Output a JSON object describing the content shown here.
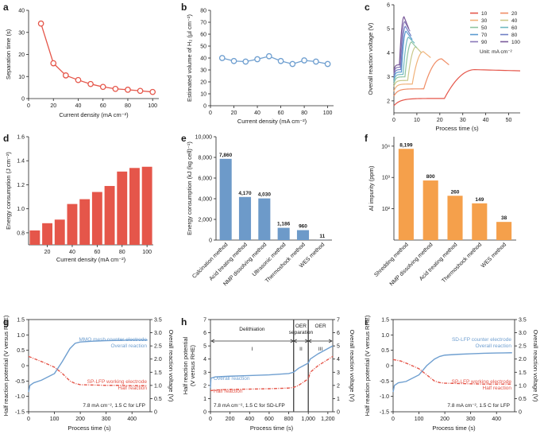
{
  "colors": {
    "red": "#e5564a",
    "blue": "#6f9fd0",
    "bar_red": "#e5564a",
    "bar_blue": "#6d9ac9",
    "bar_orange": "#f5a04b",
    "gray_line": "#4d4d4d"
  },
  "chart_data": [
    {
      "id": "a",
      "panel_label": "a",
      "type": "line",
      "x": [
        10,
        20,
        30,
        40,
        50,
        60,
        70,
        80,
        90,
        100
      ],
      "values": [
        34,
        16,
        10.5,
        8.4,
        6.6,
        5.3,
        4.4,
        4.0,
        3.5,
        3.0
      ],
      "xlabel": "Current density (mA cm⁻²)",
      "ylabel": "Separation time (s)",
      "xlim": [
        0,
        105
      ],
      "ylim": [
        0,
        40
      ],
      "xticks": [
        0,
        20,
        40,
        60,
        80,
        100
      ],
      "yticks": [
        0,
        10,
        20,
        30,
        40
      ]
    },
    {
      "id": "b",
      "panel_label": "b",
      "type": "line",
      "x": [
        10,
        20,
        30,
        40,
        50,
        60,
        70,
        80,
        90,
        100
      ],
      "values": [
        40,
        37.5,
        37,
        39,
        41.5,
        37.5,
        35,
        38,
        37,
        35
      ],
      "xlabel": "Current density (mA cm⁻²)",
      "ylabel": "Estimated volume of H₂ (µl cm⁻²)",
      "xlim": [
        0,
        105
      ],
      "ylim": [
        0,
        80
      ],
      "xticks": [
        0,
        20,
        40,
        60,
        80,
        100
      ],
      "yticks": [
        0,
        10,
        20,
        30,
        40,
        50,
        60,
        70,
        80
      ]
    },
    {
      "id": "c",
      "panel_label": "c",
      "type": "line",
      "xlabel": "Process time (s)",
      "ylabel": "Overall reaction voltage (V)",
      "xlim": [
        0,
        55
      ],
      "ylim": [
        1.5,
        6
      ],
      "xticks": [
        0,
        10,
        20,
        30,
        40,
        50
      ],
      "yticks": [
        2,
        3,
        4,
        5,
        6
      ],
      "legend_note": "Unit: mA cm⁻²",
      "series": [
        {
          "name": "10",
          "color": "#e5564a",
          "start": 1.8,
          "plateau": 2.1,
          "t_end": 22,
          "peak": 3.3,
          "end": 3.25,
          "t_stop": 55
        },
        {
          "name": "20",
          "color": "#f08c64",
          "start": 2.2,
          "plateau": 2.5,
          "t_end": 13,
          "peak": 3.75,
          "end": 3.5,
          "t_stop": 24
        },
        {
          "name": "30",
          "color": "#f1b27a",
          "start": 2.4,
          "plateau": 2.7,
          "t_end": 8,
          "peak": 4.05,
          "end": 3.8,
          "t_stop": 16
        },
        {
          "name": "40",
          "color": "#c9c98a",
          "start": 2.6,
          "plateau": 2.85,
          "t_end": 6,
          "peak": 4.25,
          "end": 4.0,
          "t_stop": 12
        },
        {
          "name": "50",
          "color": "#8fc4a0",
          "start": 2.7,
          "plateau": 3.0,
          "t_end": 4.8,
          "peak": 4.45,
          "end": 4.2,
          "t_stop": 10
        },
        {
          "name": "60",
          "color": "#6fb8c0",
          "start": 2.8,
          "plateau": 3.1,
          "t_end": 4,
          "peak": 4.65,
          "end": 4.4,
          "t_stop": 9
        },
        {
          "name": "70",
          "color": "#5b9bd0",
          "start": 2.9,
          "plateau": 3.2,
          "t_end": 3.3,
          "peak": 4.9,
          "end": 4.55,
          "t_stop": 8
        },
        {
          "name": "80",
          "color": "#6f7fc4",
          "start": 3.0,
          "plateau": 3.3,
          "t_end": 3,
          "peak": 5.1,
          "end": 4.7,
          "t_stop": 7.5
        },
        {
          "name": "90",
          "color": "#8878b8",
          "start": 3.1,
          "plateau": 3.4,
          "t_end": 2.7,
          "peak": 5.3,
          "end": 4.9,
          "t_stop": 7
        },
        {
          "name": "100",
          "color": "#7a5a9a",
          "start": 3.2,
          "plateau": 3.5,
          "t_end": 2.4,
          "peak": 5.5,
          "end": 5.0,
          "t_stop": 6.5
        }
      ]
    },
    {
      "id": "d",
      "panel_label": "d",
      "type": "bar",
      "x": [
        10,
        20,
        30,
        40,
        50,
        60,
        70,
        80,
        90,
        100
      ],
      "values": [
        0.82,
        0.88,
        0.91,
        1.04,
        1.08,
        1.14,
        1.19,
        1.31,
        1.34,
        1.35
      ],
      "xlabel": "Current density (mA cm⁻²)",
      "ylabel": "Energy consumption (J cm⁻²)",
      "xlim": [
        5,
        105
      ],
      "ylim": [
        0.7,
        1.6
      ],
      "xticks": [
        20,
        40,
        60,
        80,
        100
      ],
      "yticks": [
        0.8,
        1.0,
        1.2,
        1.4,
        1.6
      ]
    },
    {
      "id": "e",
      "panel_label": "e",
      "type": "bar",
      "categories": [
        "Calcination method",
        "Acid treating method",
        "NMP dissolving method",
        "Ultrasonic method",
        "Thermoshock method",
        "WES method"
      ],
      "values": [
        7860,
        4170,
        4030,
        1186,
        960,
        11
      ],
      "labels": [
        "7,860",
        "4,170",
        "4,030",
        "1,186",
        "960",
        "11"
      ],
      "ylabel": "Energy consumption (kJ (kg cell)⁻¹)",
      "ylim": [
        0,
        10000
      ],
      "yticks": [
        0,
        2000,
        4000,
        6000,
        8000,
        10000
      ],
      "ytick_labels": [
        "0",
        "2,000",
        "4,000",
        "6,000",
        "8,000",
        "10,000"
      ]
    },
    {
      "id": "f",
      "panel_label": "f",
      "type": "bar",
      "categories": [
        "Shredding method",
        "NMP dissolving method",
        "Acid treating method",
        "Thermoshock method",
        "WES method"
      ],
      "values": [
        8199,
        800,
        260,
        149,
        38
      ],
      "labels": [
        "8,199",
        "800",
        "260",
        "149",
        "38"
      ],
      "ylabel": "Al impurity (ppm)",
      "yscale": "log",
      "ylim": [
        10,
        20000
      ],
      "yticks": [
        100,
        1000,
        10000
      ],
      "ytick_labels": [
        "10²",
        "10³",
        "10⁴"
      ]
    },
    {
      "id": "g",
      "panel_label": "g",
      "type": "line",
      "xlabel": "Process time (s)",
      "ylabel": "Half reaction potential (V versus RHE)",
      "y2label": "Overall reaction voltage (V)",
      "xlim": [
        0,
        470
      ],
      "ylim": [
        -1.5,
        1.5
      ],
      "y2lim": [
        0,
        3.5
      ],
      "xticks": [
        0,
        100,
        200,
        300,
        400
      ],
      "yticks": [
        -1.5,
        -1.0,
        -0.5,
        0,
        0.5,
        1.0,
        1.5
      ],
      "ytick_labels": [
        "-1.5",
        "-1.0",
        "-0.5",
        "0",
        "0.5",
        "1.0",
        "1.5"
      ],
      "y2ticks": [
        0,
        0.5,
        1.0,
        1.5,
        2.0,
        2.5,
        3.0,
        3.5
      ],
      "y2tick_labels": [
        "0",
        "0.5",
        "1.0",
        "1.5",
        "2.0",
        "2.5",
        "3.0",
        "3.5"
      ],
      "series": [
        {
          "name": "Overall reaction",
          "axis": "y2",
          "color": "#6f9fd0",
          "x": [
            0,
            5,
            20,
            50,
            100,
            130,
            160,
            180,
            200,
            250,
            300,
            350,
            400,
            460
          ],
          "y": [
            0.75,
            1.0,
            1.1,
            1.2,
            1.45,
            1.9,
            2.4,
            2.6,
            2.65,
            2.68,
            2.7,
            2.71,
            2.72,
            2.72
          ]
        },
        {
          "name": "Half reaction",
          "axis": "y",
          "color": "#e5564a",
          "x": [
            0,
            30,
            60,
            100,
            130,
            160,
            180,
            200,
            250,
            300,
            350,
            400,
            460
          ],
          "y": [
            0.3,
            0.2,
            0.1,
            -0.05,
            -0.25,
            -0.5,
            -0.58,
            -0.62,
            -0.63,
            -0.64,
            -0.64,
            -0.65,
            -0.65
          ]
        }
      ],
      "annotations": [
        "MMO mesh counter electrode",
        "Overall reaction",
        "SP-LFP working electrode",
        "Half reaction",
        "7.8 mA cm⁻², 1.5 C for LFP"
      ]
    },
    {
      "id": "h",
      "panel_label": "h",
      "type": "line",
      "xlabel": "Process time (s)",
      "ylabel": "Half reaction potential (V versus RHE)",
      "y2label": "Overall reaction voltage (V)",
      "xlim": [
        0,
        1250
      ],
      "ylim": [
        0,
        7
      ],
      "y2lim": [
        0,
        7
      ],
      "xticks": [
        0,
        200,
        400,
        600,
        800,
        1000,
        1200
      ],
      "xtick_labels": [
        "0",
        "200",
        "400",
        "600",
        "800",
        "1,000",
        "1,200"
      ],
      "yticks": [
        0,
        1,
        2,
        3,
        4,
        5,
        6,
        7
      ],
      "y2ticks": [
        0,
        1,
        2,
        3,
        4,
        5,
        6,
        7
      ],
      "vlines": [
        850,
        1000
      ],
      "series": [
        {
          "name": "Overall reaction",
          "axis": "y2",
          "color": "#6f9fd0",
          "x": [
            0,
            5,
            50,
            200,
            400,
            600,
            800,
            850,
            900,
            1000,
            1020,
            1100,
            1250
          ],
          "y": [
            1.8,
            2.55,
            2.65,
            2.7,
            2.75,
            2.8,
            2.9,
            3.0,
            3.3,
            3.7,
            4.0,
            4.4,
            5.0
          ]
        },
        {
          "name": "Half reaction",
          "axis": "y",
          "color": "#e5564a",
          "x": [
            0,
            50,
            200,
            400,
            600,
            800,
            850,
            900,
            1000,
            1020,
            1100,
            1250
          ],
          "y": [
            1.6,
            1.65,
            1.7,
            1.72,
            1.75,
            1.8,
            1.85,
            2.0,
            2.5,
            3.0,
            3.5,
            4.2
          ]
        }
      ],
      "regions": [
        "I",
        "II",
        "III"
      ],
      "annotations": [
        "Delithiation",
        "OER separation",
        "OER",
        "Overall reaction",
        "Half reaction",
        "7.8 mA cm⁻², 1.5 C for SD-LFP"
      ]
    },
    {
      "id": "i",
      "panel_label": "i",
      "type": "line",
      "xlabel": "Process time (s)",
      "ylabel": "Half reaction potential (V versus RHE)",
      "y2label": "Overall reaction voltage (V)",
      "xlim": [
        0,
        470
      ],
      "ylim": [
        -1.5,
        1.5
      ],
      "y2lim": [
        0,
        3.5
      ],
      "xticks": [
        0,
        100,
        200,
        300,
        400
      ],
      "yticks": [
        -1.5,
        -1.0,
        -0.5,
        0,
        0.5,
        1.0,
        1.5
      ],
      "ytick_labels": [
        "-1.5",
        "-1.0",
        "-0.5",
        "0",
        "0.5",
        "1.0",
        "1.5"
      ],
      "y2ticks": [
        0,
        0.5,
        1.0,
        1.5,
        2.0,
        2.5,
        3.0,
        3.5
      ],
      "y2tick_labels": [
        "0",
        "0.5",
        "1.0",
        "1.5",
        "2.0",
        "2.5",
        "3.0",
        "3.5"
      ],
      "series": [
        {
          "name": "Overall reaction",
          "axis": "y2",
          "color": "#6f9fd0",
          "x": [
            0,
            5,
            20,
            50,
            100,
            130,
            160,
            180,
            200,
            250,
            300,
            350,
            400,
            460
          ],
          "y": [
            0.75,
            1.0,
            1.1,
            1.15,
            1.4,
            1.75,
            2.0,
            2.1,
            2.15,
            2.18,
            2.2,
            2.22,
            2.23,
            2.24
          ]
        },
        {
          "name": "Half reaction",
          "axis": "y",
          "color": "#e5564a",
          "x": [
            0,
            30,
            60,
            100,
            130,
            160,
            180,
            200,
            250,
            300,
            350,
            400,
            460
          ],
          "y": [
            0.2,
            0.15,
            0.05,
            -0.1,
            -0.3,
            -0.5,
            -0.55,
            -0.57,
            -0.58,
            -0.59,
            -0.6,
            -0.6,
            -0.6
          ]
        }
      ],
      "annotations": [
        "SD-LFP counter electrode",
        "Overall reaction",
        "SP-LFP working electrode",
        "Half reaction",
        "7.8 mA cm⁻², 1.5 C for LFP"
      ]
    }
  ]
}
